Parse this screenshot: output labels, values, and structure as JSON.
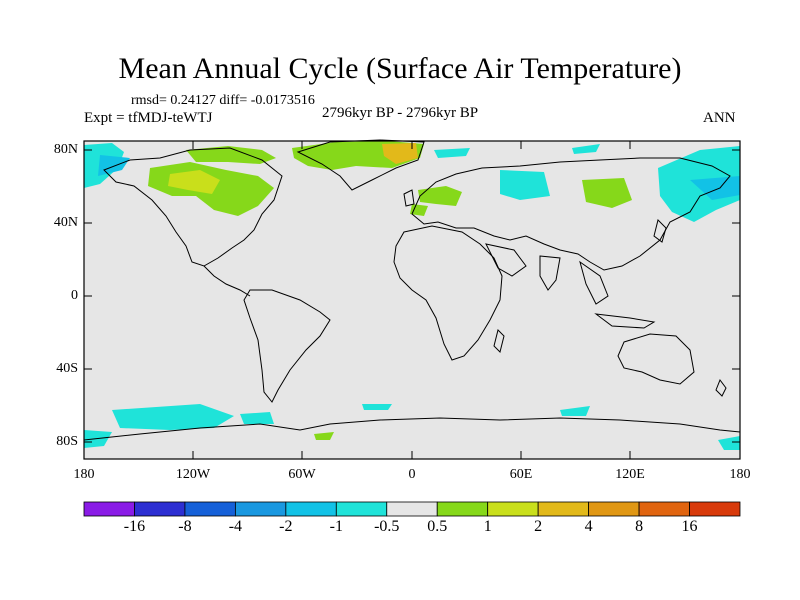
{
  "title": "Mean Annual Cycle (Surface Air Temperature)",
  "stats": "rmsd= 0.24127 diff= -0.0173516",
  "experiment": "Expt = tfMDJ-teWTJ",
  "period": "2796kyr BP - 2796kyr BP",
  "season": "ANN",
  "lat_labels": [
    "80N",
    "40N",
    "0",
    "40S",
    "80S"
  ],
  "lon_labels": [
    "180",
    "120W",
    "60W",
    "0",
    "60E",
    "120E",
    "180"
  ],
  "colorbar": {
    "labels": [
      "-16",
      "-8",
      "-4",
      "-2",
      "-1",
      "-0.5",
      "0.5",
      "1",
      "2",
      "4",
      "8",
      "16"
    ],
    "colors": [
      "#8a1be6",
      "#2d2fd2",
      "#1560d8",
      "#1a98e0",
      "#12c2e6",
      "#1fe3d9",
      "#e6e6e6",
      "#86d81a",
      "#c9df1b",
      "#e2b91a",
      "#e09714",
      "#e0640f",
      "#d83a0b"
    ]
  },
  "map_colors": {
    "background": "#e6e6e6",
    "cool": "#1fe3d9",
    "cool_light": "#12c2e6",
    "warm": "#86d81a",
    "warm_more": "#c9df1b",
    "warm_most": "#e2b91a"
  }
}
